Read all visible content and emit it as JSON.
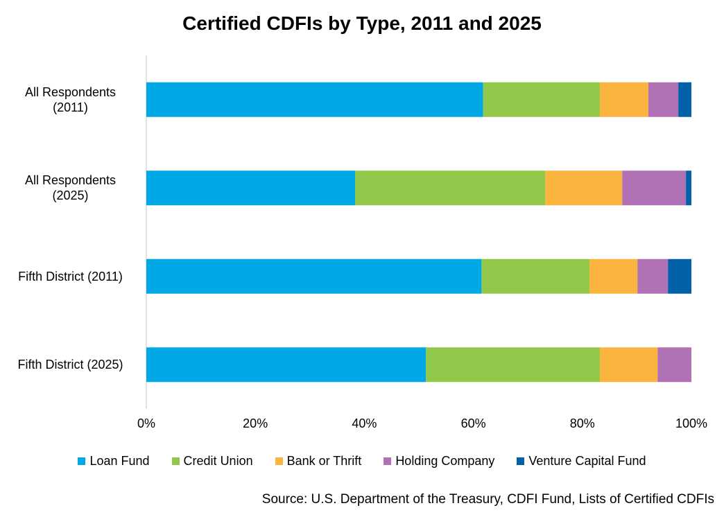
{
  "chart_data": {
    "type": "stacked_bar_horizontal",
    "title": "Certified CDFIs by Type, 2011 and 2025",
    "categories": [
      "All Respondents (2011)",
      "All Respondents (2025)",
      "Fifth District (2011)",
      "Fifth District (2025)"
    ],
    "series": [
      {
        "name": "Loan Fund",
        "color": "#00a9e6",
        "values": [
          61.8,
          38.3,
          61.5,
          51.3
        ]
      },
      {
        "name": "Credit Union",
        "color": "#92c84a",
        "values": [
          21.4,
          34.9,
          19.8,
          31.9
        ]
      },
      {
        "name": "Bank or Thrift",
        "color": "#fbb53f",
        "values": [
          8.9,
          14.1,
          8.8,
          10.6
        ]
      },
      {
        "name": "Holding Company",
        "color": "#b072b4",
        "values": [
          5.5,
          11.7,
          5.6,
          6.2
        ]
      },
      {
        "name": "Venture Capital Fund",
        "color": "#0060a8",
        "values": [
          2.4,
          1.0,
          4.3,
          0
        ]
      }
    ],
    "xlim": [
      0,
      100
    ],
    "xticks": [
      {
        "value": 0,
        "label": "0%"
      },
      {
        "value": 20,
        "label": "20%"
      },
      {
        "value": 40,
        "label": "40%"
      },
      {
        "value": 60,
        "label": "60%"
      },
      {
        "value": 80,
        "label": "80%"
      },
      {
        "value": 100,
        "label": "100%"
      }
    ],
    "legend": "bottom",
    "source": "Source: U.S. Department of the Treasury, CDFI Fund, Lists of Certified CDFIs"
  }
}
